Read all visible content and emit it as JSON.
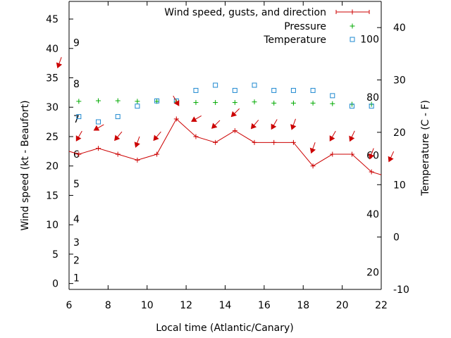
{
  "chart_data": {
    "type": "line",
    "xlabel": "Local time (Atlantic/Canary)",
    "ylabel": "Wind speed (kt - Beaufort)",
    "y2label": "Temperature (C - F)",
    "xlim": [
      6,
      22
    ],
    "ylim": [
      -1,
      48
    ],
    "y2lim": [
      -10,
      45
    ],
    "x_ticks": [
      6,
      8,
      10,
      12,
      14,
      16,
      18,
      20,
      22
    ],
    "y_ticks": [
      0,
      5,
      10,
      15,
      20,
      25,
      30,
      35,
      40,
      45
    ],
    "y2_ticks": [
      -10,
      0,
      10,
      20,
      30,
      40
    ],
    "beaufort_labels": [
      {
        "text": "1",
        "y": 1
      },
      {
        "text": "2",
        "y": 4
      },
      {
        "text": "3",
        "y": 7
      },
      {
        "text": "4",
        "y": 11
      },
      {
        "text": "5",
        "y": 17
      },
      {
        "text": "6",
        "y": 22
      },
      {
        "text": "7",
        "y": 28
      },
      {
        "text": "8",
        "y": 34
      },
      {
        "text": "9",
        "y": 41
      }
    ],
    "fahrenheit_labels": [
      {
        "text": "20",
        "y2": -6.7
      },
      {
        "text": "40",
        "y2": 4.4
      },
      {
        "text": "60",
        "y2": 15.6
      },
      {
        "text": "80",
        "y2": 26.7
      },
      {
        "text": "100",
        "y2": 37.8
      }
    ],
    "legend": [
      {
        "label": "Wind speed, gusts, and direction",
        "color": "#cc0000",
        "marker": "line-plus"
      },
      {
        "label": "Pressure",
        "color": "#00aa00",
        "marker": "plus"
      },
      {
        "label": "Temperature",
        "color": "#1e88d0",
        "marker": "square"
      }
    ],
    "legend_position": "top-right",
    "series": [
      {
        "name": "Wind speed, gusts, and direction",
        "color": "#cc0000",
        "x": [
          6,
          6.5,
          7.5,
          8.5,
          9.5,
          10.5,
          11.5,
          12.5,
          13.5,
          14.5,
          15.5,
          16.5,
          17.5,
          18.5,
          19.5,
          20.5,
          21.5,
          22
        ],
        "values": [
          22.5,
          22,
          23,
          22,
          21,
          22,
          28,
          25,
          24,
          26,
          24,
          24,
          24,
          20,
          22,
          22,
          19,
          18.5
        ]
      },
      {
        "name": "Pressure",
        "color": "#00aa00",
        "x": [
          6.5,
          7.5,
          8.5,
          9.5,
          10.5,
          11.5,
          12.5,
          13.5,
          14.5,
          15.5,
          16.5,
          17.5,
          18.5,
          19.5,
          20.5,
          21.5
        ],
        "values": [
          31,
          31.1,
          31.1,
          31,
          31,
          30.9,
          30.8,
          30.8,
          30.8,
          30.9,
          30.7,
          30.7,
          30.7,
          30.6,
          30.5,
          30.5
        ]
      },
      {
        "name": "Temperature",
        "color": "#1e88d0",
        "x": [
          6.5,
          7.5,
          8.5,
          9.5,
          10.5,
          11.5,
          12.5,
          13.5,
          14.5,
          15.5,
          16.5,
          17.5,
          18.5,
          19.5,
          20.5,
          21.5
        ],
        "values": [
          23,
          22,
          23,
          25,
          26,
          26,
          28,
          29,
          28,
          29,
          28,
          28,
          28,
          27,
          25,
          25
        ]
      }
    ],
    "direction_arrows": {
      "color": "#cc0000",
      "x": [
        6.5,
        7.5,
        8.5,
        9.5,
        10.5,
        11.5,
        12.5,
        13.5,
        14.5,
        15.5,
        16.5,
        17.5,
        18.5,
        19.5,
        20.5,
        21.5,
        22.5
      ],
      "values": [
        25,
        26.5,
        25,
        24,
        25,
        31,
        28,
        27,
        29,
        27,
        27,
        27,
        23,
        25,
        25,
        22,
        21.5
      ],
      "direction_deg": [
        30,
        60,
        40,
        20,
        40,
        330,
        60,
        45,
        45,
        40,
        30,
        20,
        20,
        30,
        25,
        20,
        25
      ],
      "extra": [
        {
          "x": 5.5,
          "value": 37.5,
          "direction_deg": 20
        }
      ]
    },
    "grid": false
  }
}
